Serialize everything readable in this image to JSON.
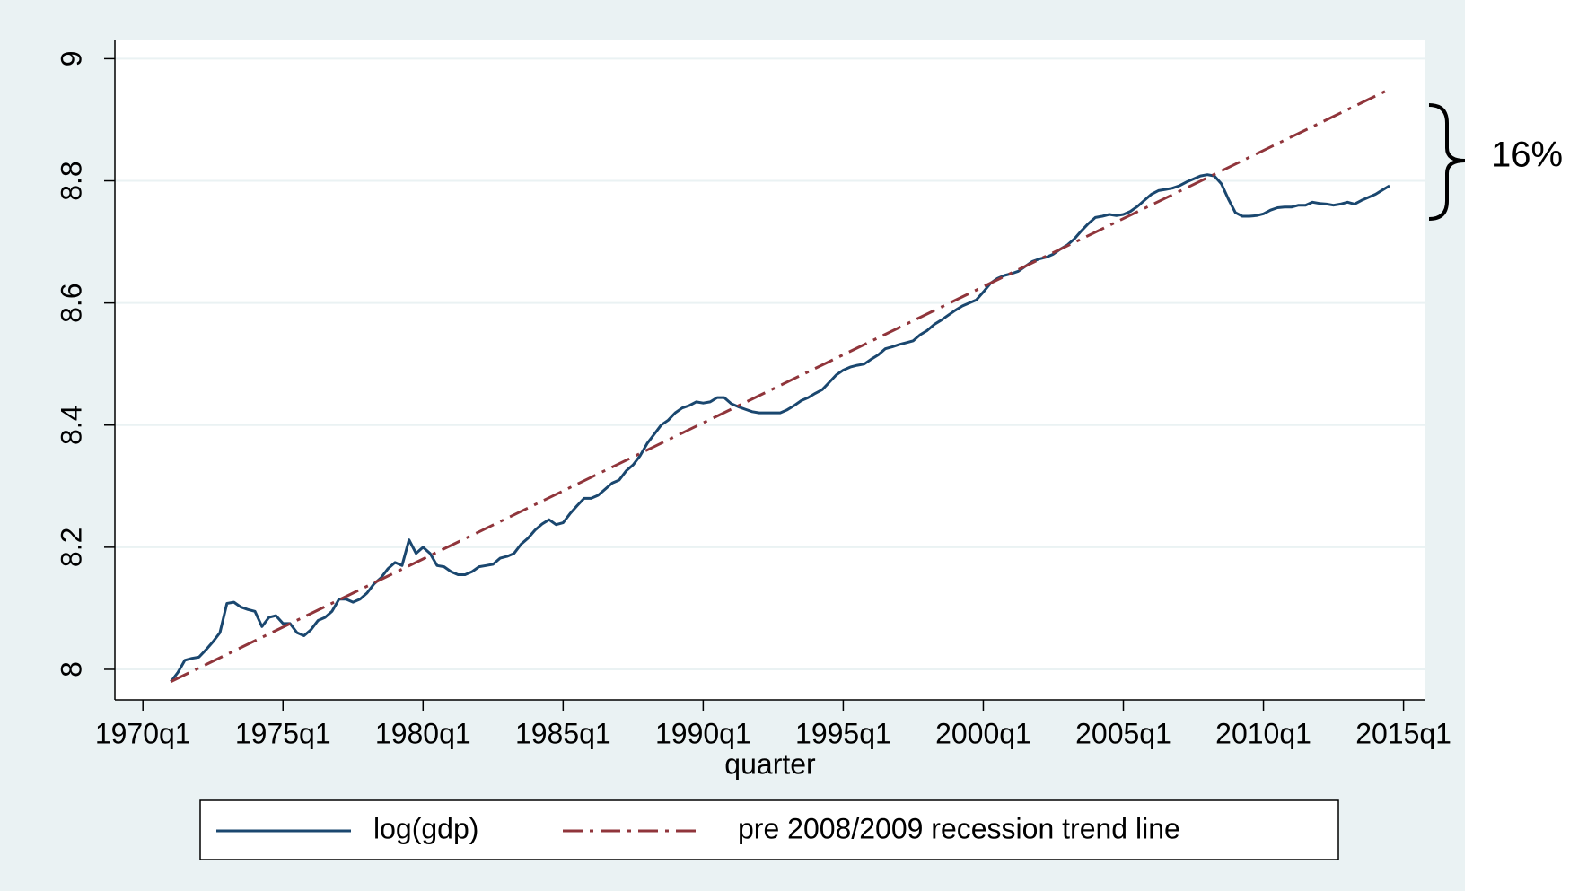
{
  "chart_data": {
    "type": "line",
    "x_label": "quarter",
    "xlim": [
      "1969q1",
      "2015q4"
    ],
    "xticks": [
      "1970q1",
      "1975q1",
      "1980q1",
      "1985q1",
      "1990q1",
      "1995q1",
      "2000q1",
      "2005q1",
      "2010q1",
      "2015q1"
    ],
    "ylim": [
      7.95,
      9.03
    ],
    "yticks": [
      8,
      8.2,
      8.4,
      8.6,
      8.8,
      9
    ],
    "grid": true,
    "legend": "bottom",
    "annotations": [
      {
        "text": "16%"
      }
    ],
    "series": [
      {
        "name": "log(gdp)",
        "color": "#1a476f",
        "dash": "solid",
        "x": [
          "1971q1",
          "1971q2",
          "1971q3",
          "1971q4",
          "1972q1",
          "1972q2",
          "1972q3",
          "1972q4",
          "1973q1",
          "1973q2",
          "1973q3",
          "1973q4",
          "1974q1",
          "1974q2",
          "1974q3",
          "1974q4",
          "1975q1",
          "1975q2",
          "1975q3",
          "1975q4",
          "1976q1",
          "1976q2",
          "1976q3",
          "1976q4",
          "1977q1",
          "1977q2",
          "1977q3",
          "1977q4",
          "1978q1",
          "1978q2",
          "1978q3",
          "1978q4",
          "1979q1",
          "1979q2",
          "1979q3",
          "1979q4",
          "1980q1",
          "1980q2",
          "1980q3",
          "1980q4",
          "1981q1",
          "1981q2",
          "1981q3",
          "1981q4",
          "1982q1",
          "1982q2",
          "1982q3",
          "1982q4",
          "1983q1",
          "1983q2",
          "1983q3",
          "1983q4",
          "1984q1",
          "1984q2",
          "1984q3",
          "1984q4",
          "1985q1",
          "1985q2",
          "1985q3",
          "1985q4",
          "1986q1",
          "1986q2",
          "1986q3",
          "1986q4",
          "1987q1",
          "1987q2",
          "1987q3",
          "1987q4",
          "1988q1",
          "1988q2",
          "1988q3",
          "1988q4",
          "1989q1",
          "1989q2",
          "1989q3",
          "1989q4",
          "1990q1",
          "1990q2",
          "1990q3",
          "1990q4",
          "1991q1",
          "1991q2",
          "1991q3",
          "1991q4",
          "1992q1",
          "1992q2",
          "1992q3",
          "1992q4",
          "1993q1",
          "1993q2",
          "1993q3",
          "1993q4",
          "1994q1",
          "1994q2",
          "1994q3",
          "1994q4",
          "1995q1",
          "1995q2",
          "1995q3",
          "1995q4",
          "1996q1",
          "1996q2",
          "1996q3",
          "1996q4",
          "1997q1",
          "1997q2",
          "1997q3",
          "1997q4",
          "1998q1",
          "1998q2",
          "1998q3",
          "1998q4",
          "1999q1",
          "1999q2",
          "1999q3",
          "1999q4",
          "2000q1",
          "2000q2",
          "2000q3",
          "2000q4",
          "2001q1",
          "2001q2",
          "2001q3",
          "2001q4",
          "2002q1",
          "2002q2",
          "2002q3",
          "2002q4",
          "2003q1",
          "2003q2",
          "2003q3",
          "2003q4",
          "2004q1",
          "2004q2",
          "2004q3",
          "2004q4",
          "2005q1",
          "2005q2",
          "2005q3",
          "2005q4",
          "2006q1",
          "2006q2",
          "2006q3",
          "2006q4",
          "2007q1",
          "2007q2",
          "2007q3",
          "2007q4",
          "2008q1",
          "2008q2",
          "2008q3",
          "2008q4",
          "2009q1",
          "2009q2",
          "2009q3",
          "2009q4",
          "2010q1",
          "2010q2",
          "2010q3",
          "2010q4",
          "2011q1",
          "2011q2",
          "2011q3",
          "2011q4",
          "2012q1",
          "2012q2",
          "2012q3",
          "2012q4",
          "2013q1",
          "2013q2",
          "2013q3",
          "2013q4",
          "2014q1",
          "2014q2",
          "2014q3"
        ],
        "values": [
          7.98,
          7.995,
          8.015,
          8.018,
          8.02,
          8.032,
          8.045,
          8.06,
          8.108,
          8.11,
          8.102,
          8.098,
          8.095,
          8.07,
          8.085,
          8.088,
          8.075,
          8.075,
          8.06,
          8.055,
          8.065,
          8.08,
          8.085,
          8.095,
          8.115,
          8.115,
          8.11,
          8.115,
          8.125,
          8.14,
          8.15,
          8.165,
          8.175,
          8.17,
          8.212,
          8.19,
          8.2,
          8.19,
          8.17,
          8.168,
          8.16,
          8.155,
          8.155,
          8.16,
          8.168,
          8.17,
          8.172,
          8.182,
          8.185,
          8.19,
          8.205,
          8.215,
          8.228,
          8.238,
          8.245,
          8.237,
          8.24,
          8.255,
          8.268,
          8.28,
          8.28,
          8.285,
          8.295,
          8.305,
          8.31,
          8.325,
          8.335,
          8.35,
          8.37,
          8.385,
          8.4,
          8.408,
          8.42,
          8.428,
          8.432,
          8.438,
          8.436,
          8.438,
          8.445,
          8.445,
          8.435,
          8.43,
          8.426,
          8.422,
          8.42,
          8.42,
          8.42,
          8.42,
          8.425,
          8.432,
          8.44,
          8.445,
          8.452,
          8.458,
          8.47,
          8.482,
          8.49,
          8.495,
          8.498,
          8.5,
          8.508,
          8.515,
          8.525,
          8.528,
          8.532,
          8.535,
          8.538,
          8.548,
          8.555,
          8.565,
          8.572,
          8.58,
          8.588,
          8.595,
          8.6,
          8.605,
          8.618,
          8.632,
          8.64,
          8.645,
          8.648,
          8.652,
          8.66,
          8.668,
          8.672,
          8.675,
          8.68,
          8.688,
          8.695,
          8.705,
          8.718,
          8.73,
          8.74,
          8.742,
          8.745,
          8.743,
          8.745,
          8.75,
          8.758,
          8.768,
          8.778,
          8.784,
          8.786,
          8.788,
          8.792,
          8.798,
          8.803,
          8.808,
          8.81,
          8.808,
          8.795,
          8.77,
          8.748,
          8.742,
          8.742,
          8.743,
          8.746,
          8.752,
          8.756,
          8.757,
          8.757,
          8.76,
          8.76,
          8.765,
          8.763,
          8.762,
          8.76,
          8.762,
          8.765,
          8.762,
          8.768,
          8.773,
          8.778,
          8.785,
          8.792
        ]
      },
      {
        "name": "pre 2008/2009 recession trend line",
        "color": "#90353b",
        "dash": "dashdot",
        "x": [
          "1971q1",
          "2014q3"
        ],
        "values": [
          7.98,
          8.95
        ]
      }
    ]
  }
}
